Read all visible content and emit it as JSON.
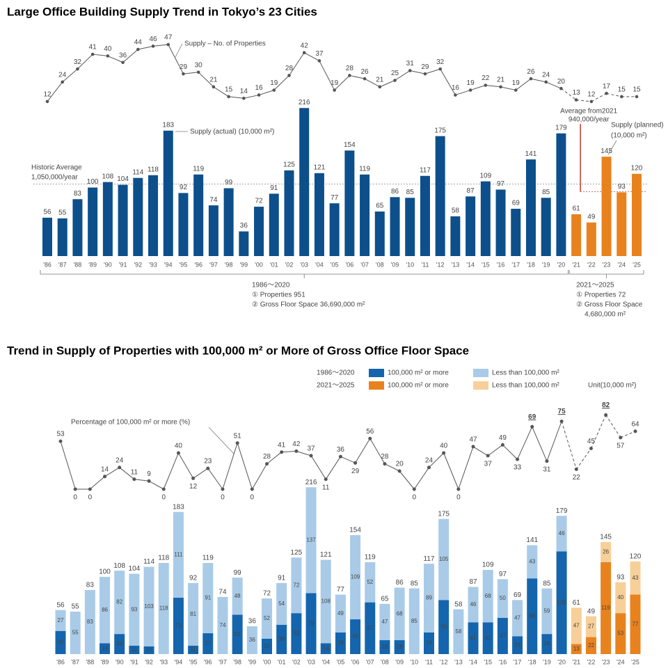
{
  "chart_data": [
    {
      "type": "bar",
      "title": "Large Office Building Supply Trend in Tokyo’s 23 Cities",
      "categories": [
        "'86",
        "'87",
        "'88",
        "'89",
        "'90",
        "'91",
        "'92",
        "'93",
        "'94",
        "'95",
        "'96",
        "'97",
        "'98",
        "'99",
        "'00",
        "'01",
        "'02",
        "'03",
        "'04",
        "'05",
        "'06",
        "'07",
        "'08",
        "'09",
        "'10",
        "'11",
        "'12",
        "'13",
        "'14",
        "'15",
        "'16",
        "'17",
        "'18",
        "'19",
        "'20",
        "'21",
        "'22",
        "'23",
        "'24",
        "'25"
      ],
      "series": [
        {
          "name": "Supply (actual)",
          "unit": "(10,000 m²)",
          "color": "#0d4f8b",
          "values": [
            56,
            55,
            83,
            100,
            108,
            104,
            114,
            118,
            183,
            92,
            119,
            74,
            99,
            36,
            72,
            91,
            125,
            216,
            121,
            77,
            154,
            119,
            65,
            86,
            85,
            117,
            175,
            58,
            87,
            109,
            97,
            69,
            141,
            85,
            179,
            null,
            null,
            null,
            null,
            null
          ]
        },
        {
          "name": "Supply (planned)",
          "unit": "(10,000 m²)",
          "color": "#e8821e",
          "values": [
            null,
            null,
            null,
            null,
            null,
            null,
            null,
            null,
            null,
            null,
            null,
            null,
            null,
            null,
            null,
            null,
            null,
            null,
            null,
            null,
            null,
            null,
            null,
            null,
            null,
            null,
            null,
            null,
            null,
            null,
            null,
            null,
            null,
            null,
            null,
            61,
            49,
            145,
            93,
            120
          ]
        },
        {
          "name": "Supply – No. of Properties",
          "type": "line",
          "color": "#555555",
          "values": [
            12,
            24,
            32,
            41,
            40,
            36,
            44,
            46,
            47,
            29,
            30,
            21,
            15,
            14,
            16,
            19,
            28,
            42,
            37,
            19,
            28,
            26,
            21,
            25,
            31,
            29,
            32,
            16,
            19,
            22,
            21,
            19,
            26,
            24,
            20,
            13,
            12,
            17,
            15,
            15
          ]
        }
      ],
      "reference_lines": [
        {
          "value": 105,
          "label": [
            "Historic Average",
            "1,050,000/year"
          ],
          "color": "#999999"
        },
        {
          "value": 94,
          "label": [
            "Average from2021",
            "940,000/year"
          ],
          "color": "#c0392b"
        }
      ],
      "period_notes": [
        {
          "lines": [
            "1986〜2020",
            "① Properties 951",
            "② Gross Floor Space 36,690,000 m²"
          ]
        },
        {
          "lines": [
            "2021〜2025",
            "① Properties 72",
            "② Gross Floor Space",
            "4,680,000 m²"
          ]
        }
      ]
    },
    {
      "type": "stacked_bar",
      "title": "Trend in Supply of Properties with 100,000 m² or More of Gross Office Floor Space",
      "categories": [
        "'86",
        "'87",
        "'88",
        "'89",
        "'90",
        "'91",
        "'92",
        "'93",
        "'94",
        "'95",
        "'96",
        "'97",
        "'98",
        "'99",
        "'00",
        "'01",
        "'02",
        "'03",
        "'04",
        "'05",
        "'06",
        "'07",
        "'08",
        "'09",
        "'10",
        "'11",
        "'12",
        "'13",
        "'14",
        "'15",
        "'16",
        "'17",
        "'18",
        "'19",
        "'20",
        "'21",
        "'22",
        "'23",
        "'24",
        "'25"
      ],
      "legend": {
        "rows": [
          "1986〜2020",
          "2021〜2025"
        ],
        "unit": "Unit(10,000 m²)"
      },
      "series": [
        {
          "name": "100,000 m² or more",
          "color": "#1465ad",
          "values": [
            30,
            0,
            0,
            14,
            26,
            11,
            10,
            0,
            73,
            11,
            27,
            0,
            51,
            0,
            20,
            38,
            53,
            79,
            14,
            28,
            45,
            67,
            18,
            18,
            0,
            28,
            70,
            0,
            41,
            41,
            47,
            23,
            98,
            26,
            133,
            null,
            null,
            null,
            null,
            null
          ]
        },
        {
          "name": "Less than 100,000 m²",
          "color": "#a9cbe8",
          "values": [
            27,
            55,
            83,
            86,
            82,
            93,
            103,
            118,
            111,
            81,
            91,
            74,
            48,
            36,
            52,
            54,
            72,
            137,
            108,
            49,
            109,
            52,
            47,
            68,
            85,
            89,
            105,
            58,
            46,
            68,
            50,
            47,
            43,
            59,
            46,
            null,
            null,
            null,
            null,
            null
          ]
        },
        {
          "name": "100,000 m² or more",
          "color": "#e8821e",
          "values": [
            null,
            null,
            null,
            null,
            null,
            null,
            null,
            null,
            null,
            null,
            null,
            null,
            null,
            null,
            null,
            null,
            null,
            null,
            null,
            null,
            null,
            null,
            null,
            null,
            null,
            null,
            null,
            null,
            null,
            null,
            null,
            null,
            null,
            null,
            null,
            13,
            22,
            119,
            53,
            77
          ]
        },
        {
          "name": "Less than 100,000 m²",
          "color": "#f7cf98",
          "values": [
            null,
            null,
            null,
            null,
            null,
            null,
            null,
            null,
            null,
            null,
            null,
            null,
            null,
            null,
            null,
            null,
            null,
            null,
            null,
            null,
            null,
            null,
            null,
            null,
            null,
            null,
            null,
            null,
            null,
            null,
            null,
            null,
            null,
            null,
            null,
            47,
            27,
            26,
            40,
            43
          ]
        }
      ],
      "totals": [
        56,
        55,
        83,
        100,
        108,
        104,
        114,
        118,
        183,
        92,
        119,
        74,
        99,
        36,
        72,
        91,
        125,
        216,
        121,
        77,
        154,
        119,
        65,
        86,
        85,
        117,
        175,
        58,
        87,
        109,
        97,
        69,
        141,
        85,
        179,
        61,
        49,
        145,
        93,
        120
      ],
      "percentage": {
        "name": "Percentage of 100,000 m² or more (%)",
        "color": "#555555",
        "values": [
          53,
          0,
          0,
          14,
          24,
          11,
          9,
          0,
          40,
          12,
          23,
          0,
          51,
          0,
          28,
          41,
          42,
          37,
          11,
          36,
          29,
          56,
          28,
          20,
          0,
          24,
          40,
          0,
          47,
          37,
          49,
          33,
          69,
          31,
          75,
          22,
          45,
          82,
          57,
          64
        ]
      }
    }
  ]
}
